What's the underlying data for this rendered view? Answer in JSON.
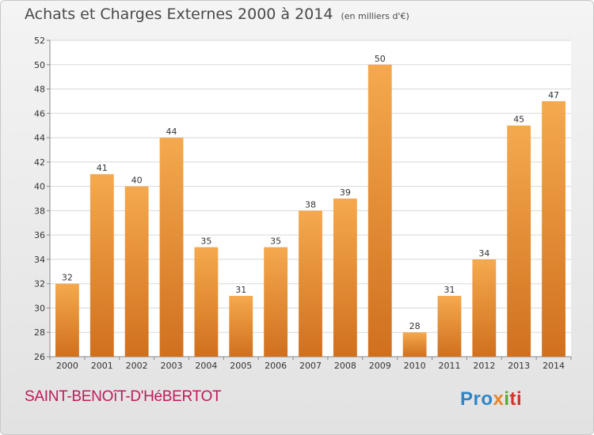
{
  "header": {
    "title": "Achats et Charges Externes 2000 à 2014",
    "unit": "(en milliers d'€)"
  },
  "footer": {
    "commune": "SAINT-BENOîT-D'HéBERTOT",
    "brand": [
      "Pro",
      "x",
      "i",
      "ti"
    ]
  },
  "colors": {
    "bar_top": "#f5a94e",
    "bar_bottom": "#d0701e",
    "grid": "#d8d8d8",
    "axis": "#888888",
    "title": "#4a4a4a",
    "commune": "#c2185b"
  },
  "chart_data": {
    "type": "bar",
    "title": "Achats et Charges Externes 2000 à 2014",
    "subtitle": "(en milliers d'€)",
    "categories": [
      "2000",
      "2001",
      "2002",
      "2003",
      "2004",
      "2005",
      "2006",
      "2007",
      "2008",
      "2009",
      "2010",
      "2011",
      "2012",
      "2013",
      "2014"
    ],
    "values": [
      32,
      41,
      40,
      44,
      35,
      31,
      35,
      38,
      39,
      50,
      28,
      31,
      34,
      45,
      47
    ],
    "ylim": [
      26,
      52
    ],
    "yticks": [
      26,
      28,
      30,
      32,
      34,
      36,
      38,
      40,
      42,
      44,
      46,
      48,
      50,
      52
    ],
    "grid": true,
    "data_labels": true
  }
}
